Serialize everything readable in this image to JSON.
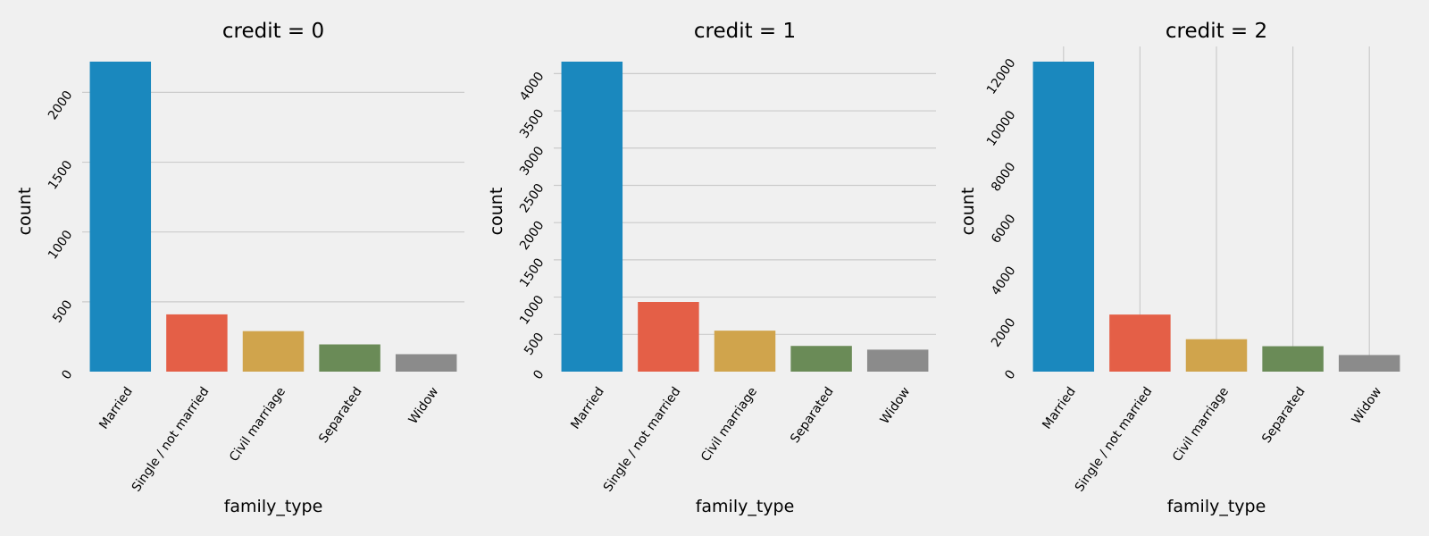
{
  "figure": {
    "background": "#f0f0f0",
    "gridline_color": "#cbcbcb"
  },
  "colors": [
    "#1a88be",
    "#e45f47",
    "#d0a44c",
    "#6a8b57",
    "#8b8b8b"
  ],
  "chart_data": [
    {
      "type": "bar",
      "title": "credit = 0",
      "xlabel": "family_type",
      "ylabel": "count",
      "categories": [
        "Married",
        "Single / not married",
        "Civil marriage",
        "Separated",
        "Widow"
      ],
      "values": [
        2220,
        410,
        290,
        195,
        125
      ],
      "ylim": [
        0,
        2220
      ],
      "yticks": [
        0,
        500,
        1000,
        1500,
        2000
      ],
      "grid": "horizontal"
    },
    {
      "type": "bar",
      "title": "credit = 1",
      "xlabel": "family_type",
      "ylabel": "count",
      "categories": [
        "Married",
        "Single / not married",
        "Civil marriage",
        "Separated",
        "Widow"
      ],
      "values": [
        4160,
        935,
        550,
        345,
        295
      ],
      "ylim": [
        0,
        4160
      ],
      "yticks": [
        0,
        500,
        1000,
        1500,
        2000,
        2500,
        3000,
        3500,
        4000
      ],
      "grid": "horizontal"
    },
    {
      "type": "bar",
      "title": "credit = 2",
      "xlabel": "family_type",
      "ylabel": "count",
      "categories": [
        "Married",
        "Single / not married",
        "Civil marriage",
        "Separated",
        "Widow"
      ],
      "values": [
        11950,
        2200,
        1250,
        980,
        640
      ],
      "ylim": [
        0,
        11950
      ],
      "yticks": [
        0,
        2000,
        4000,
        6000,
        8000,
        10000,
        12000
      ],
      "grid": "vertical"
    }
  ]
}
